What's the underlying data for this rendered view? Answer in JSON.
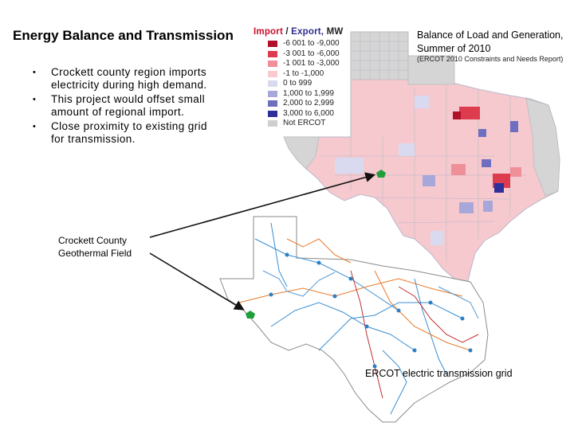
{
  "slide": {
    "title": "Energy Balance and Transmission",
    "bullets": [
      "Crockett county region imports electricity during high demand.",
      "This project would offset small amount of regional import.",
      "Close proximity to existing grid for transmission."
    ]
  },
  "balance_map": {
    "title": "Balance of Load and Generation, Summer of 2010",
    "subtitle": "(ERCOT 2010 Constraints and Needs Report)",
    "legend": {
      "title_import": "Import",
      "title_sep": " / ",
      "title_export": "Export,",
      "title_unit": " MW",
      "items": [
        {
          "label": "-6 001 to -9,000",
          "color": "#b0102a"
        },
        {
          "label": "-3 001 to -6,000",
          "color": "#dd3b4e"
        },
        {
          "label": "-1 001 to -3,000",
          "color": "#ef8f98"
        },
        {
          "label": "-1 to -1,000",
          "color": "#f8c9cf"
        },
        {
          "label": "0 to 999",
          "color": "#d9d9ef"
        },
        {
          "label": "1,000 to 1,999",
          "color": "#a7a7d9"
        },
        {
          "label": "2,000 to 2,999",
          "color": "#6f6fc0"
        },
        {
          "label": "3,000 to 6,000",
          "color": "#2f2f9a"
        },
        {
          "label": "Not ERCOT",
          "color": "#cfcfcf"
        }
      ]
    }
  },
  "grid_map": {
    "caption": "ERCOT electric transmission grid"
  },
  "annotation": {
    "label": "Crockett County Geothermal Field",
    "marker_color": "#1f9e3a"
  }
}
